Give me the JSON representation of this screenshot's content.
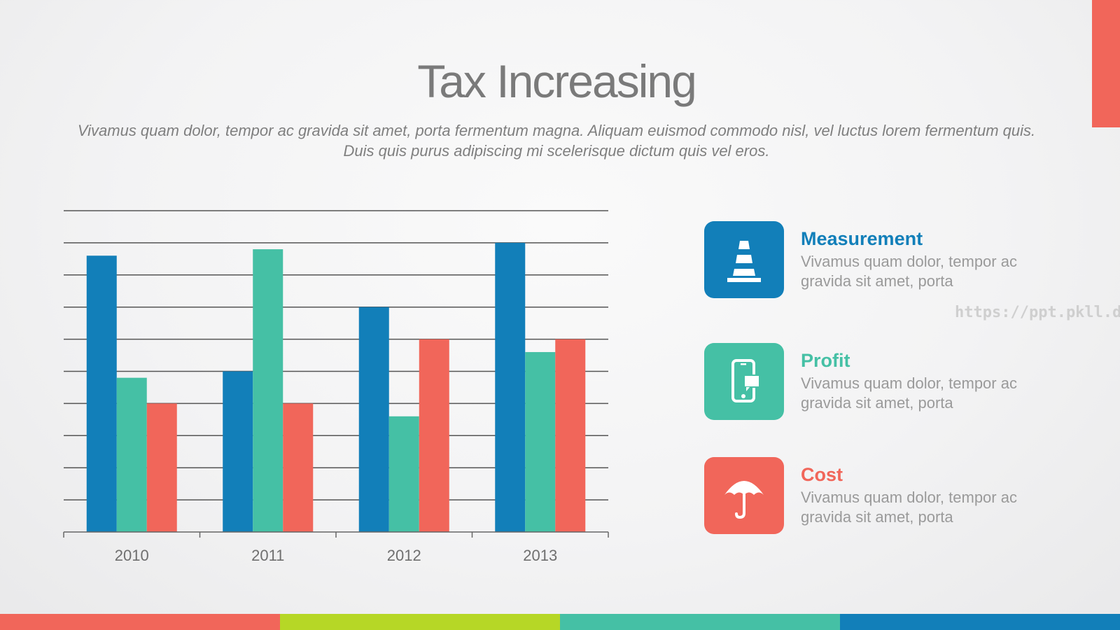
{
  "slide": {
    "title": "Tax Increasing",
    "subtitle": "Vivamus quam dolor, tempor ac gravida sit amet, porta fermentum magna. Aliquam euismod commodo nisl, vel luctus lorem fermentum quis. Duis quis purus adipiscing mi scelerisque dictum quis vel eros.",
    "watermark": "https://ppt.pkll.de"
  },
  "colors": {
    "blue": "#127fb9",
    "teal": "#45c0a5",
    "coral": "#f1665a",
    "lime": "#b6d726",
    "grid": "#555555",
    "title_gray": "#7a7a7a"
  },
  "legend": [
    {
      "title": "Measurement",
      "desc": "Vivamus quam dolor, tempor ac gravida sit amet, porta",
      "icon": "traffic-cone-icon",
      "color": "#127fb9"
    },
    {
      "title": "Profit",
      "desc": "Vivamus quam dolor, tempor ac gravida sit amet, porta",
      "icon": "smartphone-chat-icon",
      "color": "#45c0a5"
    },
    {
      "title": "Cost",
      "desc": "Vivamus quam dolor, tempor ac gravida sit amet, porta",
      "icon": "umbrella-icon",
      "color": "#f1665a"
    }
  ],
  "bottom_bar_colors": [
    "#f1665a",
    "#b6d726",
    "#45c0a5",
    "#127fb9"
  ],
  "chart_data": {
    "type": "bar",
    "categories": [
      "2010",
      "2011",
      "2012",
      "2013"
    ],
    "series": [
      {
        "values": [
          8.6,
          5.0,
          7.0,
          9.0
        ],
        "color": "#127fb9"
      },
      {
        "values": [
          4.8,
          8.8,
          3.6,
          5.6
        ],
        "color": "#45c0a5"
      },
      {
        "values": [
          4.0,
          4.0,
          6.0,
          6.0
        ],
        "color": "#f1665a"
      }
    ],
    "ylim": [
      0,
      10
    ],
    "yticks": 10,
    "grid": true,
    "axis_labels_visible": false
  }
}
